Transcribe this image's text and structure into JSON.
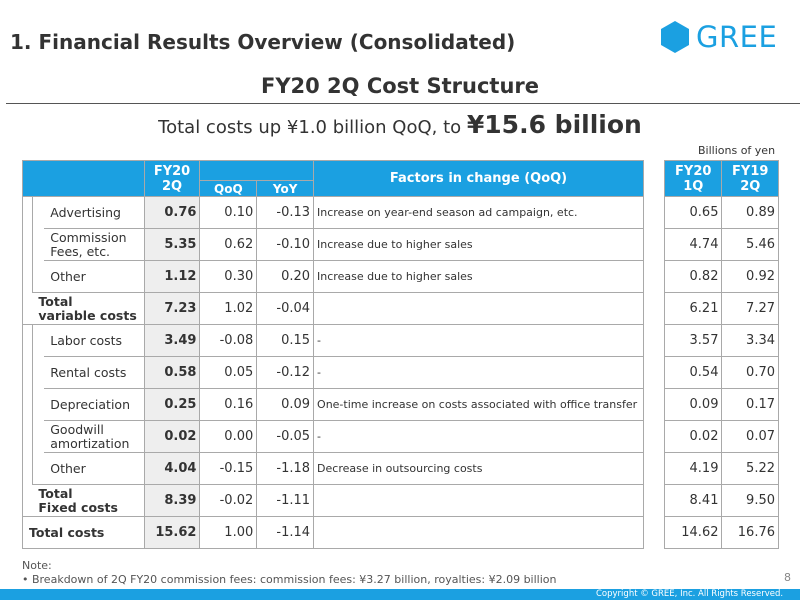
{
  "header": {
    "title": "1. Financial Results Overview (Consolidated)",
    "logo_text": "GREE"
  },
  "colors": {
    "accent": "#1ba0e1",
    "fy20_col_bg": "#eeeeee"
  },
  "slide": {
    "subtitle": "FY20 2Q Cost Structure",
    "headline_prefix": "Total costs up ¥1.0 billion QoQ, to ",
    "headline_value": "¥15.6 billion",
    "units": "Billions of yen"
  },
  "table_header": {
    "fy20_line1": "FY20",
    "fy20_line2": "2Q",
    "qoq": "QoQ",
    "yoy": "YoY",
    "factors": "Factors in change (QoQ)",
    "fy20_1q_line1": "FY20",
    "fy20_1q_line2": "1Q",
    "fy19_2q_line1": "FY19",
    "fy19_2q_line2": "2Q"
  },
  "rows": [
    {
      "label": "Advertising",
      "fy20_2q": "0.76",
      "qoq": "0.10",
      "yoy": "-0.13",
      "factor": "Increase on year-end season ad campaign, etc.",
      "fy20_1q": "0.65",
      "fy19_2q": "0.89"
    },
    {
      "label_l1": "Commission",
      "label_l2": "Fees, etc.",
      "fy20_2q": "5.35",
      "qoq": "0.62",
      "yoy": "-0.10",
      "factor": "Increase due to higher sales",
      "fy20_1q": "4.74",
      "fy19_2q": "5.46"
    },
    {
      "label": "Other",
      "fy20_2q": "1.12",
      "qoq": "0.30",
      "yoy": "0.20",
      "factor": "Increase due to higher sales",
      "fy20_1q": "0.82",
      "fy19_2q": "0.92"
    },
    {
      "label_l1": "Total",
      "label_l2": "variable costs",
      "fy20_2q": "7.23",
      "qoq": "1.02",
      "yoy": "-0.04",
      "factor": "",
      "fy20_1q": "6.21",
      "fy19_2q": "7.27"
    },
    {
      "label": "Labor costs",
      "fy20_2q": "3.49",
      "qoq": "-0.08",
      "yoy": "0.15",
      "factor": "-",
      "fy20_1q": "3.57",
      "fy19_2q": "3.34"
    },
    {
      "label": "Rental costs",
      "fy20_2q": "0.58",
      "qoq": "0.05",
      "yoy": "-0.12",
      "factor": "-",
      "fy20_1q": "0.54",
      "fy19_2q": "0.70"
    },
    {
      "label": "Depreciation",
      "fy20_2q": "0.25",
      "qoq": "0.16",
      "yoy": "0.09",
      "factor": "One-time increase on costs associated with office transfer",
      "fy20_1q": "0.09",
      "fy19_2q": "0.17"
    },
    {
      "label_l1": "Goodwill",
      "label_l2": "amortization",
      "fy20_2q": "0.02",
      "qoq": "0.00",
      "yoy": "-0.05",
      "factor": "-",
      "fy20_1q": "0.02",
      "fy19_2q": "0.07"
    },
    {
      "label": "Other",
      "fy20_2q": "4.04",
      "qoq": "-0.15",
      "yoy": "-1.18",
      "factor": "Decrease in outsourcing costs",
      "fy20_1q": "4.19",
      "fy19_2q": "5.22"
    },
    {
      "label_l1": "Total",
      "label_l2": "Fixed costs",
      "fy20_2q": "8.39",
      "qoq": "-0.02",
      "yoy": "-1.11",
      "factor": "",
      "fy20_1q": "8.41",
      "fy19_2q": "9.50"
    },
    {
      "label": "Total costs",
      "fy20_2q": "15.62",
      "qoq": "1.00",
      "yoy": "-1.14",
      "factor": "",
      "fy20_1q": "14.62",
      "fy19_2q": "16.76"
    }
  ],
  "note": {
    "title": "Note:",
    "line": "• Breakdown of 2Q FY20 commission fees: commission fees: ¥3.27 billion, royalties: ¥2.09 billion"
  },
  "footer": {
    "page_number": "8",
    "copyright": "Copyright © GREE, Inc. All Rights Reserved."
  }
}
